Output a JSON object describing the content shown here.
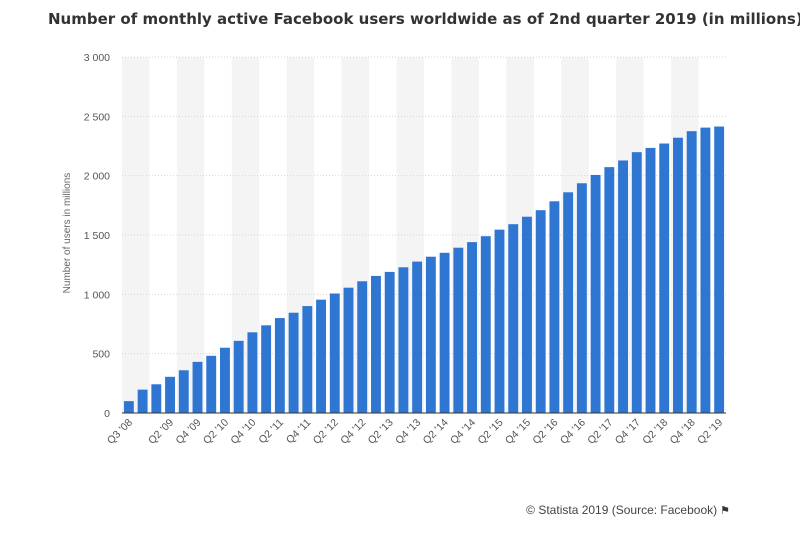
{
  "chart_data": {
    "type": "bar",
    "title": "Number of monthly active Facebook users worldwide as of 2nd quarter 2019 (in millions)",
    "ylabel": "Number of users in millions",
    "xlabel": "",
    "ylim": [
      0,
      3000
    ],
    "yticks": [
      "0",
      "500",
      "1 000",
      "1 500",
      "2 000",
      "2 500",
      "3 000"
    ],
    "ytick_values": [
      0,
      500,
      1000,
      1500,
      2000,
      2500,
      3000
    ],
    "grid": true,
    "bar_color": "#2f76d2",
    "categories": [
      "Q3 '08",
      "Q4 '08",
      "Q1 '09",
      "Q2 '09",
      "Q3 '09",
      "Q4 '09",
      "Q1 '10",
      "Q2 '10",
      "Q3 '10",
      "Q4 '10",
      "Q1 '11",
      "Q2 '11",
      "Q3 '11",
      "Q4 '11",
      "Q1 '12",
      "Q2 '12",
      "Q3 '12",
      "Q4 '12",
      "Q1 '13",
      "Q2 '13",
      "Q3 '13",
      "Q4 '13",
      "Q1 '14",
      "Q2 '14",
      "Q3 '14",
      "Q4 '14",
      "Q1 '15",
      "Q2 '15",
      "Q3 '15",
      "Q4 '15",
      "Q1 '16",
      "Q2 '16",
      "Q3 '16",
      "Q4 '16",
      "Q1 '17",
      "Q2 '17",
      "Q3 '17",
      "Q4 '17",
      "Q1 '18",
      "Q2 '18",
      "Q3 '18",
      "Q4 '18",
      "Q1 '19",
      "Q2 '19"
    ],
    "shown_xticks": [
      "Q3 '08",
      "Q2 '09",
      "Q4 '09",
      "Q2 '10",
      "Q4 '10",
      "Q2 '11",
      "Q4 '11",
      "Q2 '12",
      "Q4 '12",
      "Q2 '13",
      "Q4 '13",
      "Q2 '14",
      "Q4 '14",
      "Q2 '15",
      "Q4 '15",
      "Q2 '16",
      "Q4 '16",
      "Q2 '17",
      "Q4 '17",
      "Q2 '18",
      "Q4 '18",
      "Q2 '19"
    ],
    "values": [
      100,
      197,
      242,
      305,
      360,
      431,
      482,
      550,
      608,
      680,
      739,
      800,
      845,
      901,
      955,
      1007,
      1056,
      1110,
      1155,
      1189,
      1228,
      1276,
      1317,
      1350,
      1393,
      1440,
      1490,
      1545,
      1591,
      1654,
      1709,
      1784,
      1860,
      1936,
      2006,
      2072,
      2128,
      2198,
      2234,
      2271,
      2320,
      2375,
      2405,
      2414
    ]
  },
  "source": {
    "text": "© Statista 2019 (Source: Facebook)",
    "flag_icon": "flag-icon"
  }
}
